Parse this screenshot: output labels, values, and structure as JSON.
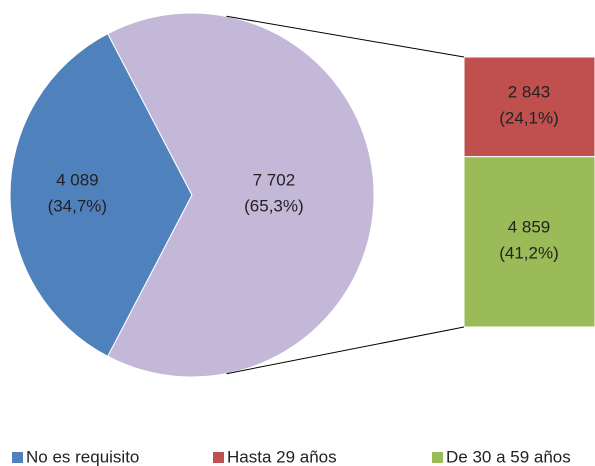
{
  "chart_data": {
    "type": "bar-of-pie",
    "pie": {
      "categories": [
        "No es requisito",
        null
      ],
      "values": [
        4089,
        7702
      ],
      "value_labels": [
        "4 089",
        "7 702"
      ],
      "percents": [
        34.7,
        65.3
      ],
      "percent_labels": [
        "(34,7%)",
        "(65,3%)"
      ],
      "colors": [
        "#4f81bd",
        "#c4b8d9"
      ]
    },
    "bar": {
      "categories": [
        "Hasta 29 años",
        "De 30 a 59 años"
      ],
      "values": [
        2843,
        4859
      ],
      "value_labels": [
        "2 843",
        "4 859"
      ],
      "percents": [
        24.1,
        41.2
      ],
      "percent_labels": [
        "(24,1%)",
        "(41,2%)"
      ],
      "colors": [
        "#c0504d",
        "#9bbb59"
      ]
    },
    "legend": "bottom"
  }
}
